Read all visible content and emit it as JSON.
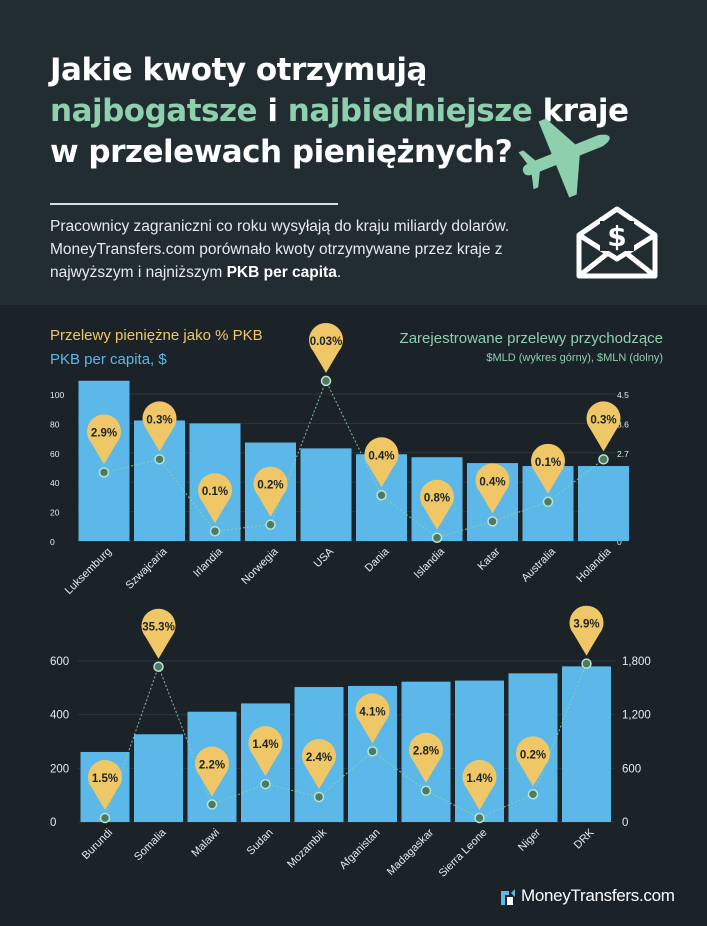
{
  "header": {
    "title_part1": "Jakie kwoty otrzymują",
    "title_hl1": "najbogatsze",
    "title_mid": "i",
    "title_hl2": "najbiedniejsze",
    "title_part2": "kraje",
    "title_line3": "w przelewach pieniężnych?",
    "intro_text": "Pracownicy zagraniczni co roku wysyłają do kraju miliardy dolarów. MoneyTransfers.com porównało kwoty otrzymywane przez kraje z najwyższym i najniższym",
    "intro_bold": "PKB per capita",
    "intro_end": "."
  },
  "legend": {
    "remit_pct_label": "Przelewy pieniężne jako % PKB",
    "gdp_label": "PKB per capita, $",
    "inflows_label": "Zarejestrowane przelewy przychodzące",
    "inflows_units": "$MLD (wykres górny), $MLN (dolny)"
  },
  "colors": {
    "bar": "#5cb8e8",
    "line": "#8ecfae",
    "pin": "#f0c766",
    "accent_green": "#8ecfae",
    "background": "#1b2329"
  },
  "icons": [
    "airplane-icon",
    "envelope-dollar-icon",
    "moneytransfers-logo-icon"
  ],
  "chart_data": [
    {
      "type": "bar",
      "name": "richest",
      "categories": [
        "Luksemburg",
        "Szwajcaria",
        "Irlandia",
        "Norwegia",
        "USA",
        "Dania",
        "Islandia",
        "Katar",
        "Australia",
        "Holandia"
      ],
      "series": [
        {
          "name": "PKB per capita, $",
          "axis": "left",
          "values": [
            109,
            82,
            80,
            67,
            63,
            59,
            57,
            53,
            51,
            51
          ]
        },
        {
          "name": "Zarejestrowane przelewy przychodzące",
          "axis": "right",
          "values": [
            2.1,
            2.5,
            0.3,
            0.5,
            4.9,
            1.4,
            0.1,
            0.6,
            1.2,
            2.5
          ]
        }
      ],
      "pin_labels": [
        "2.9%",
        "0.3%",
        "0.1%",
        "0.2%",
        "0.03%",
        "0.4%",
        "0.8%",
        "0.4%",
        "0.1%",
        "0.3%"
      ],
      "y_left_ticks": [
        "100",
        "80",
        "60",
        "40",
        "20",
        "0"
      ],
      "y_right_ticks": [
        "4.5",
        "3.6",
        "2.7",
        "1.8",
        "0.9",
        "0"
      ],
      "ylim_left": [
        0,
        100
      ],
      "ylim_right": [
        0,
        4.5
      ]
    },
    {
      "type": "bar",
      "name": "poorest",
      "categories": [
        "Burundi",
        "Somalia",
        "Malawi",
        "Sudan",
        "Mozambik",
        "Afganistan",
        "Madagaskar",
        "Sierra Leone",
        "Niger",
        "DRK"
      ],
      "series": [
        {
          "name": "PKB per capita, $",
          "axis": "left",
          "values": [
            261,
            327,
            411,
            442,
            503,
            507,
            523,
            527,
            554,
            580
          ]
        },
        {
          "name": "Zarejestrowane przelewy przychodzące",
          "axis": "right",
          "values": [
            45,
            1736,
            196,
            424,
            280,
            790,
            350,
            45,
            310,
            1770
          ]
        }
      ],
      "pin_labels": [
        "1.5%",
        "35.3%",
        "2.2%",
        "1.4%",
        "2.4%",
        "4.1%",
        "2.8%",
        "1.4%",
        "0.2%",
        "3.9%"
      ],
      "y_left_ticks": [
        "600",
        "400",
        "200",
        "0"
      ],
      "y_right_ticks": [
        "1,800",
        "1,200",
        "600",
        "0"
      ],
      "ylim_left": [
        0,
        600
      ],
      "ylim_right": [
        0,
        1800
      ]
    }
  ],
  "brand": {
    "name": "MoneyTransfers.com"
  }
}
